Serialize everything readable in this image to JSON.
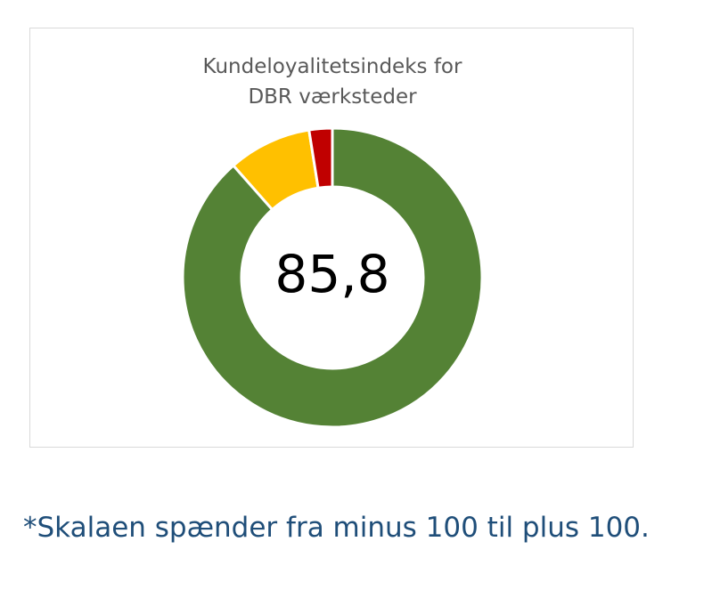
{
  "chart_data": {
    "type": "pie",
    "subtype": "donut",
    "title_lines": [
      "Kundeloyalitetsindeks for",
      "DBR værksteder"
    ],
    "center_label": "85,8",
    "slices": [
      {
        "value": 88.5,
        "color": "#548235"
      },
      {
        "value": 9.0,
        "color": "#ffc000"
      },
      {
        "value": 2.5,
        "color": "#c00000"
      }
    ],
    "legend": "none"
  },
  "footnote": "*Skalaen spænder fra minus 100 til plus 100."
}
